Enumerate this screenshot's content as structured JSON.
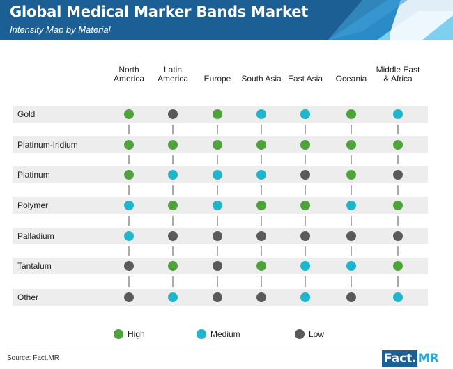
{
  "header": {
    "title": "Global Medical Marker Bands Market",
    "subtitle": "Intensity Map by Material"
  },
  "colors": {
    "High": "#4ea43a",
    "Medium": "#1fb5cc",
    "Low": "#5a5a5a",
    "header_bg": "#1b5f95",
    "row_band": "#ededed"
  },
  "chart_data": {
    "type": "table",
    "columns": [
      [
        "North",
        "America"
      ],
      [
        "Latin",
        "America"
      ],
      [
        "Europe"
      ],
      [
        "South Asia"
      ],
      [
        "East Asia"
      ],
      [
        "Oceania"
      ],
      [
        "Middle East",
        "& Africa"
      ]
    ],
    "rows": [
      "Gold",
      "Platinum-Iridium",
      "Platinum",
      "Polymer",
      "Palladium",
      "Tantalum",
      "Other"
    ],
    "values": [
      [
        "High",
        "Low",
        "High",
        "Medium",
        "Medium",
        "High",
        "Medium"
      ],
      [
        "High",
        "High",
        "High",
        "High",
        "High",
        "High",
        "High"
      ],
      [
        "High",
        "Medium",
        "Medium",
        "Medium",
        "Low",
        "High",
        "Low"
      ],
      [
        "Medium",
        "High",
        "Medium",
        "High",
        "High",
        "Medium",
        "High"
      ],
      [
        "Medium",
        "Low",
        "Low",
        "Low",
        "Low",
        "Low",
        "Low"
      ],
      [
        "Low",
        "High",
        "Low",
        "High",
        "Medium",
        "Medium",
        "High"
      ],
      [
        "Low",
        "Medium",
        "Low",
        "Low",
        "Medium",
        "Low",
        "Medium"
      ]
    ],
    "legend": [
      "High",
      "Medium",
      "Low"
    ],
    "legend_position": "bottom"
  },
  "footer": {
    "source": "Source: Fact.MR",
    "logo_left": "Fact.",
    "logo_right": "MR"
  }
}
